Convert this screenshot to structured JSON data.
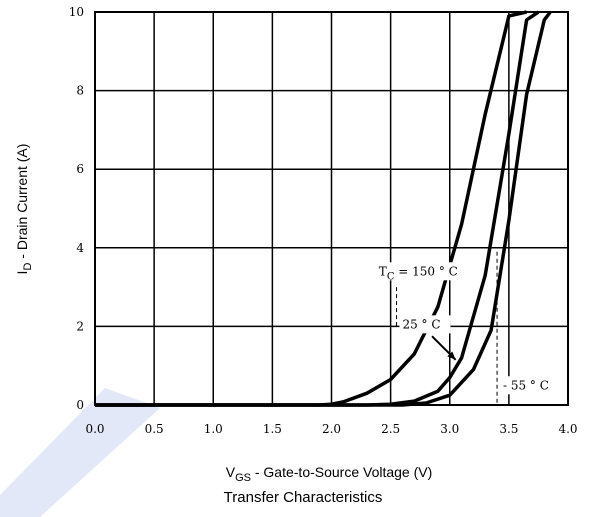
{
  "colors": {
    "curve": "#000000",
    "grid": "#000000",
    "watermark": "#cfd8f2"
  },
  "chart_data": {
    "type": "line",
    "title": "Transfer Characteristics",
    "xlabel": {
      "main": "V",
      "sub": "GS",
      "rest": " - Gate-to-Source Voltage (V)"
    },
    "ylabel": {
      "main": "I",
      "sub": "D",
      "rest": " - Drain Current (A)"
    },
    "xlim": [
      0,
      4
    ],
    "ylim": [
      0,
      10
    ],
    "x_ticks": [
      "0.0",
      "0.5",
      "1.0",
      "1.5",
      "2.0",
      "2.5",
      "3.0",
      "3.5",
      "4.0"
    ],
    "y_ticks": [
      "0",
      "2",
      "4",
      "6",
      "8",
      "10"
    ],
    "grid": true,
    "series": [
      {
        "name": "150",
        "x": [
          0.0,
          1.5,
          1.9,
          2.0,
          2.1,
          2.3,
          2.5,
          2.7,
          2.9,
          3.1,
          3.3,
          3.5,
          3.65
        ],
        "y": [
          0.0,
          0.0,
          0.0,
          0.02,
          0.08,
          0.3,
          0.65,
          1.3,
          2.5,
          4.6,
          7.4,
          9.9,
          10.0
        ]
      },
      {
        "name": "25",
        "x": [
          0.0,
          2.3,
          2.5,
          2.7,
          2.9,
          3.0,
          3.1,
          3.3,
          3.5,
          3.65,
          3.75
        ],
        "y": [
          0.0,
          0.0,
          0.02,
          0.1,
          0.35,
          0.7,
          1.2,
          3.3,
          6.9,
          9.8,
          10.0
        ]
      },
      {
        "name": "-55",
        "x": [
          0.0,
          2.6,
          2.8,
          3.0,
          3.2,
          3.35,
          3.5,
          3.65,
          3.8,
          3.85
        ],
        "y": [
          0.0,
          0.0,
          0.05,
          0.25,
          0.9,
          1.9,
          4.7,
          7.9,
          9.8,
          10.0
        ]
      }
    ],
    "annotations": [
      {
        "pre": "T",
        "sub": "C",
        "post": " = 150 ° C",
        "x": 2.4,
        "y": 3.3
      },
      {
        "pre": "25 ° C",
        "sub": "",
        "post": "",
        "x": 2.6,
        "y": 1.95
      },
      {
        "pre": "- 55 ° C",
        "sub": "",
        "post": "",
        "x": 3.45,
        "y": 0.4
      }
    ]
  }
}
